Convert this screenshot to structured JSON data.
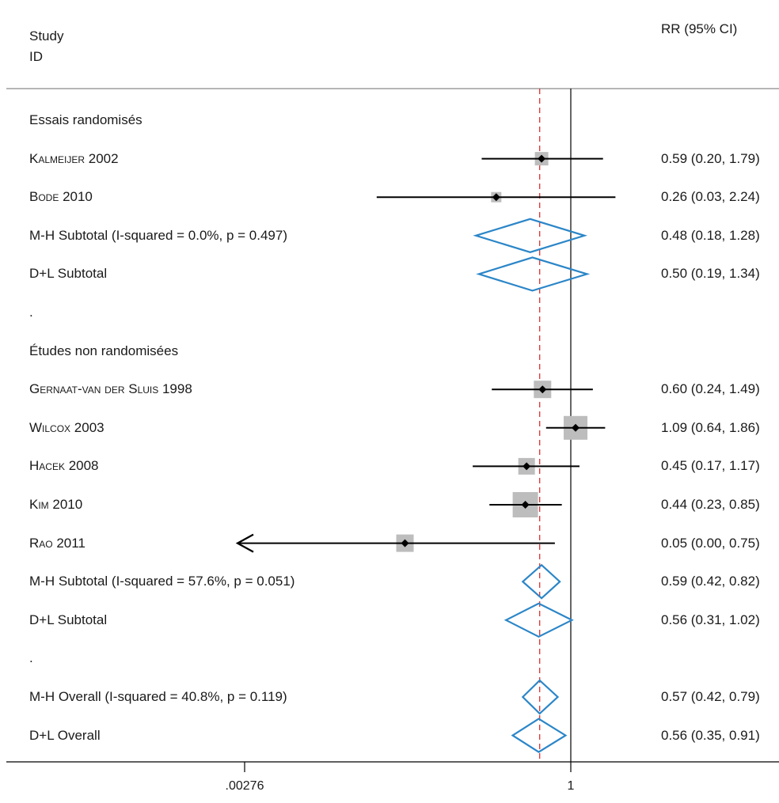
{
  "header": {
    "study_col_line1": "Study",
    "study_col_line2": "ID",
    "effect_col": "RR (95% CI)"
  },
  "chart_data": {
    "type": "forest",
    "xscale": "log",
    "xlim": [
      0.00276,
      362
    ],
    "xticks": [
      {
        "value": 0.00276,
        "label": ".00276"
      },
      {
        "value": 1,
        "label": "1"
      },
      {
        "value": 362,
        "label": ""
      }
    ],
    "reference_line": 1,
    "overall_line": 0.57,
    "colors": {
      "diamond": "#2b86c8",
      "overall_line": "#e0302f",
      "square": "#bdbdbd",
      "line": "#000000"
    },
    "rows": [
      {
        "kind": "group",
        "label": "Essais randomisés"
      },
      {
        "kind": "study",
        "author": "Kalmeijer",
        "year": "2002",
        "rr": 0.59,
        "lo": 0.2,
        "hi": 1.79,
        "ci": "0.59 (0.20, 1.79)",
        "weight": 17
      },
      {
        "kind": "study",
        "author": "Bode",
        "year": "2010",
        "rr": 0.26,
        "lo": 0.03,
        "hi": 2.24,
        "ci": "0.26 (0.03, 2.24)",
        "weight": 13
      },
      {
        "kind": "subtotal",
        "label": "M-H Subtotal  (I-squared = 0.0%, p = 0.497)",
        "rr": 0.48,
        "lo": 0.18,
        "hi": 1.28,
        "ci": "0.48 (0.18, 1.28)"
      },
      {
        "kind": "subtotal",
        "label": "D+L Subtotal",
        "rr": 0.5,
        "lo": 0.19,
        "hi": 1.34,
        "ci": "0.50 (0.19, 1.34)"
      },
      {
        "kind": "spacer",
        "label": "."
      },
      {
        "kind": "group",
        "label": "Études non randomisées"
      },
      {
        "kind": "study",
        "author": "Gernaat-van der Sluis",
        "year": "1998",
        "rr": 0.6,
        "lo": 0.24,
        "hi": 1.49,
        "ci": "0.60 (0.24, 1.49)",
        "weight": 22
      },
      {
        "kind": "study",
        "author": "Wilcox",
        "year": "2003",
        "rr": 1.09,
        "lo": 0.64,
        "hi": 1.86,
        "ci": "1.09 (0.64, 1.86)",
        "weight": 30
      },
      {
        "kind": "study",
        "author": "Hacek",
        "year": "2008",
        "rr": 0.45,
        "lo": 0.17,
        "hi": 1.17,
        "ci": "0.45 (0.17, 1.17)",
        "weight": 21
      },
      {
        "kind": "study",
        "author": "Kim",
        "year": "2010",
        "rr": 0.44,
        "lo": 0.23,
        "hi": 0.85,
        "ci": "0.44 (0.23, 0.85)",
        "weight": 32
      },
      {
        "kind": "study",
        "author": "Rao",
        "year": "2011",
        "rr": 0.05,
        "lo": 0.0,
        "hi": 0.75,
        "ci": "0.05 (0.00, 0.75)",
        "weight": 22,
        "arrow_left": true
      },
      {
        "kind": "subtotal",
        "label": "M-H Subtotal  (I-squared = 57.6%, p = 0.051)",
        "rr": 0.59,
        "lo": 0.42,
        "hi": 0.82,
        "ci": "0.59 (0.42, 0.82)"
      },
      {
        "kind": "subtotal",
        "label": "D+L Subtotal",
        "rr": 0.56,
        "lo": 0.31,
        "hi": 1.02,
        "ci": "0.56 (0.31, 1.02)"
      },
      {
        "kind": "spacer",
        "label": "."
      },
      {
        "kind": "overall",
        "label": "M-H Overall  (I-squared = 40.8%, p = 0.119)",
        "rr": 0.57,
        "lo": 0.42,
        "hi": 0.79,
        "ci": "0.57 (0.42, 0.79)"
      },
      {
        "kind": "overall",
        "label": "D+L Overall",
        "rr": 0.56,
        "lo": 0.35,
        "hi": 0.91,
        "ci": "0.56 (0.35, 0.91)"
      }
    ]
  }
}
